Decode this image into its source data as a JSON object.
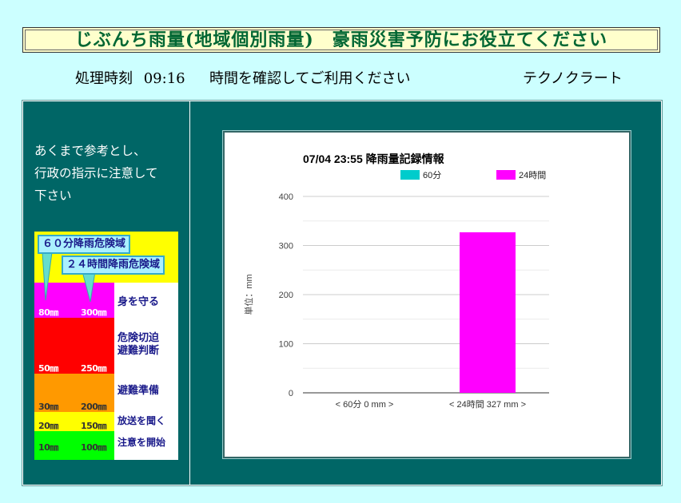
{
  "header": {
    "title": "じぶんち雨量(地域個別雨量)　豪雨災害予防にお役立てください"
  },
  "info": {
    "time_label": "処理時刻",
    "time_value": "09:16",
    "confirm_text": "時間を確認してご利用ください",
    "company": "テクノクラート"
  },
  "notice": {
    "line1": "あくまで参考とし、",
    "line2": "行政の指示に注意して",
    "line3": "下さい"
  },
  "legend": {
    "callout_60": "６０分降雨危険域",
    "callout_24": "２４時間降雨危険域",
    "bands": [
      {
        "v60": "80㎜",
        "v24": "300㎜",
        "action": "身を守る",
        "color": "#ff00ff"
      },
      {
        "v60": "50㎜",
        "v24": "250㎜",
        "action_line1": "危険切迫",
        "action_line2": "避難判断",
        "color": "#ff0000"
      },
      {
        "v60": "30㎜",
        "v24": "200㎜",
        "action": "避難準備",
        "color": "#ff9900"
      },
      {
        "v60": "20㎜",
        "v24": "150㎜",
        "action": "放送を聞く",
        "color": "#ffff00"
      },
      {
        "v60": "10㎜",
        "v24": "100㎜",
        "action": "注意を開始",
        "color": "#00ff00"
      }
    ],
    "top_color": "#ffff00"
  },
  "chart_data": {
    "type": "bar",
    "title": "07/04 23:55 降雨量記録情報",
    "ylabel": "単位：mm",
    "xlabel": "",
    "categories": [
      "< 60分 0 mm >",
      "< 24時間 327 mm >"
    ],
    "series": [
      {
        "name": "60分",
        "color": "#00cccc",
        "values": [
          0,
          null
        ]
      },
      {
        "name": "24時間",
        "color": "#ff00ff",
        "values": [
          null,
          327
        ]
      }
    ],
    "ylim": [
      0,
      400
    ],
    "yticks": [
      0,
      100,
      200,
      300,
      400
    ],
    "grid": true,
    "legend_position": "top"
  }
}
